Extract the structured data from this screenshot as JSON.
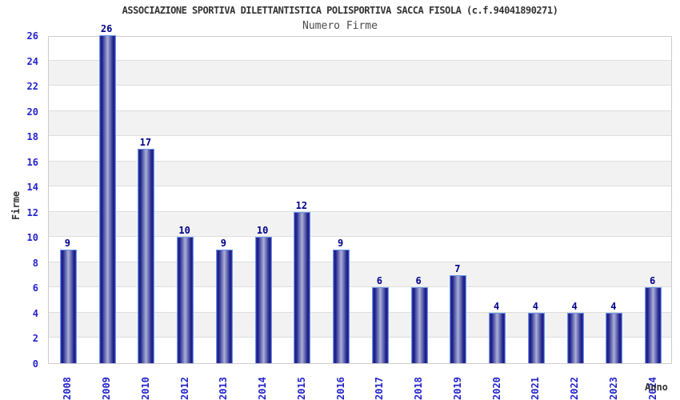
{
  "header": {
    "title": "ASSOCIAZIONE SPORTIVA DILETTANTISTICA POLISPORTIVA SACCA FISOLA (c.f.94041890271)",
    "subtitle": "Numero Firme"
  },
  "chart_data": {
    "type": "bar",
    "title": "Numero Firme",
    "categories": [
      "2008",
      "2009",
      "2010",
      "2012",
      "2013",
      "2014",
      "2015",
      "2016",
      "2017",
      "2018",
      "2019",
      "2020",
      "2021",
      "2022",
      "2023",
      "2024"
    ],
    "values": [
      9,
      26,
      17,
      10,
      9,
      10,
      12,
      9,
      6,
      6,
      7,
      4,
      4,
      4,
      4,
      6
    ],
    "xlabel": "Anno",
    "ylabel": "Firme",
    "ylim": [
      0,
      26
    ],
    "ytick_step": 2,
    "yticks": [
      0,
      2,
      4,
      6,
      8,
      10,
      12,
      14,
      16,
      18,
      20,
      22,
      24,
      26
    ],
    "grid": "horizontal gridlines every 2 units with alternating white/gray bands",
    "legend": "none",
    "bar_value_labels_shown": true
  },
  "colors": {
    "bar_dark": "#1b1b80",
    "bar_mid": "#24248e",
    "bar_light": "#aab1d8",
    "bar_border": "#6c95e8",
    "value_label": "#00008b",
    "tick_label": "#2323cc",
    "axis_title": "#333333",
    "title_text": "#333333",
    "subtitle_text": "#4a4a4a",
    "band_gray": "#f2f2f2",
    "gridline": "#dddddd",
    "plot_border": "#cccccc",
    "background": "#ffffff"
  }
}
